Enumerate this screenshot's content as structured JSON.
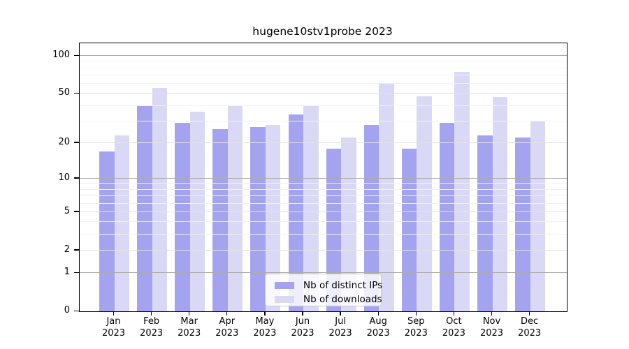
{
  "chart_data": {
    "type": "bar",
    "title": "hugene10stv1probe 2023",
    "categories": [
      "Jan 2023",
      "Feb 2023",
      "Mar 2023",
      "Apr 2023",
      "May 2023",
      "Jun 2023",
      "Jul 2023",
      "Aug 2023",
      "Sep 2023",
      "Oct 2023",
      "Nov 2023",
      "Dec 2023"
    ],
    "series": [
      {
        "name": "Nb of distinct IPs",
        "color": "#a3a3ef",
        "values": [
          17,
          40,
          29,
          26,
          27,
          34,
          18,
          28,
          18,
          29,
          23,
          22
        ]
      },
      {
        "name": "Nb of downloads",
        "color": "#d9d9f6",
        "values": [
          23,
          56,
          36,
          40,
          28,
          40,
          22,
          61,
          48,
          75,
          47,
          30
        ]
      }
    ],
    "yscale": "log1p",
    "ylim": [
      0,
      126
    ],
    "yticks_labeled": [
      0,
      1,
      2,
      5,
      10,
      20,
      50,
      100
    ],
    "yticks_major_grid": [
      1,
      10,
      100
    ],
    "yticks_mid_grid": [
      2,
      5,
      20,
      50
    ],
    "yticks_minor_grid": [
      3,
      4,
      6,
      7,
      8,
      9,
      30,
      40,
      60,
      70,
      80,
      90
    ],
    "xlabel": "",
    "ylabel": "",
    "grid": "on",
    "legend_position": "lower center"
  },
  "colors": {
    "distinct_ips": "#a3a3ef",
    "downloads": "#d9d9f6",
    "grid_major": "#ababab",
    "grid_minor": "#f1f1f1",
    "spine": "#000000"
  }
}
